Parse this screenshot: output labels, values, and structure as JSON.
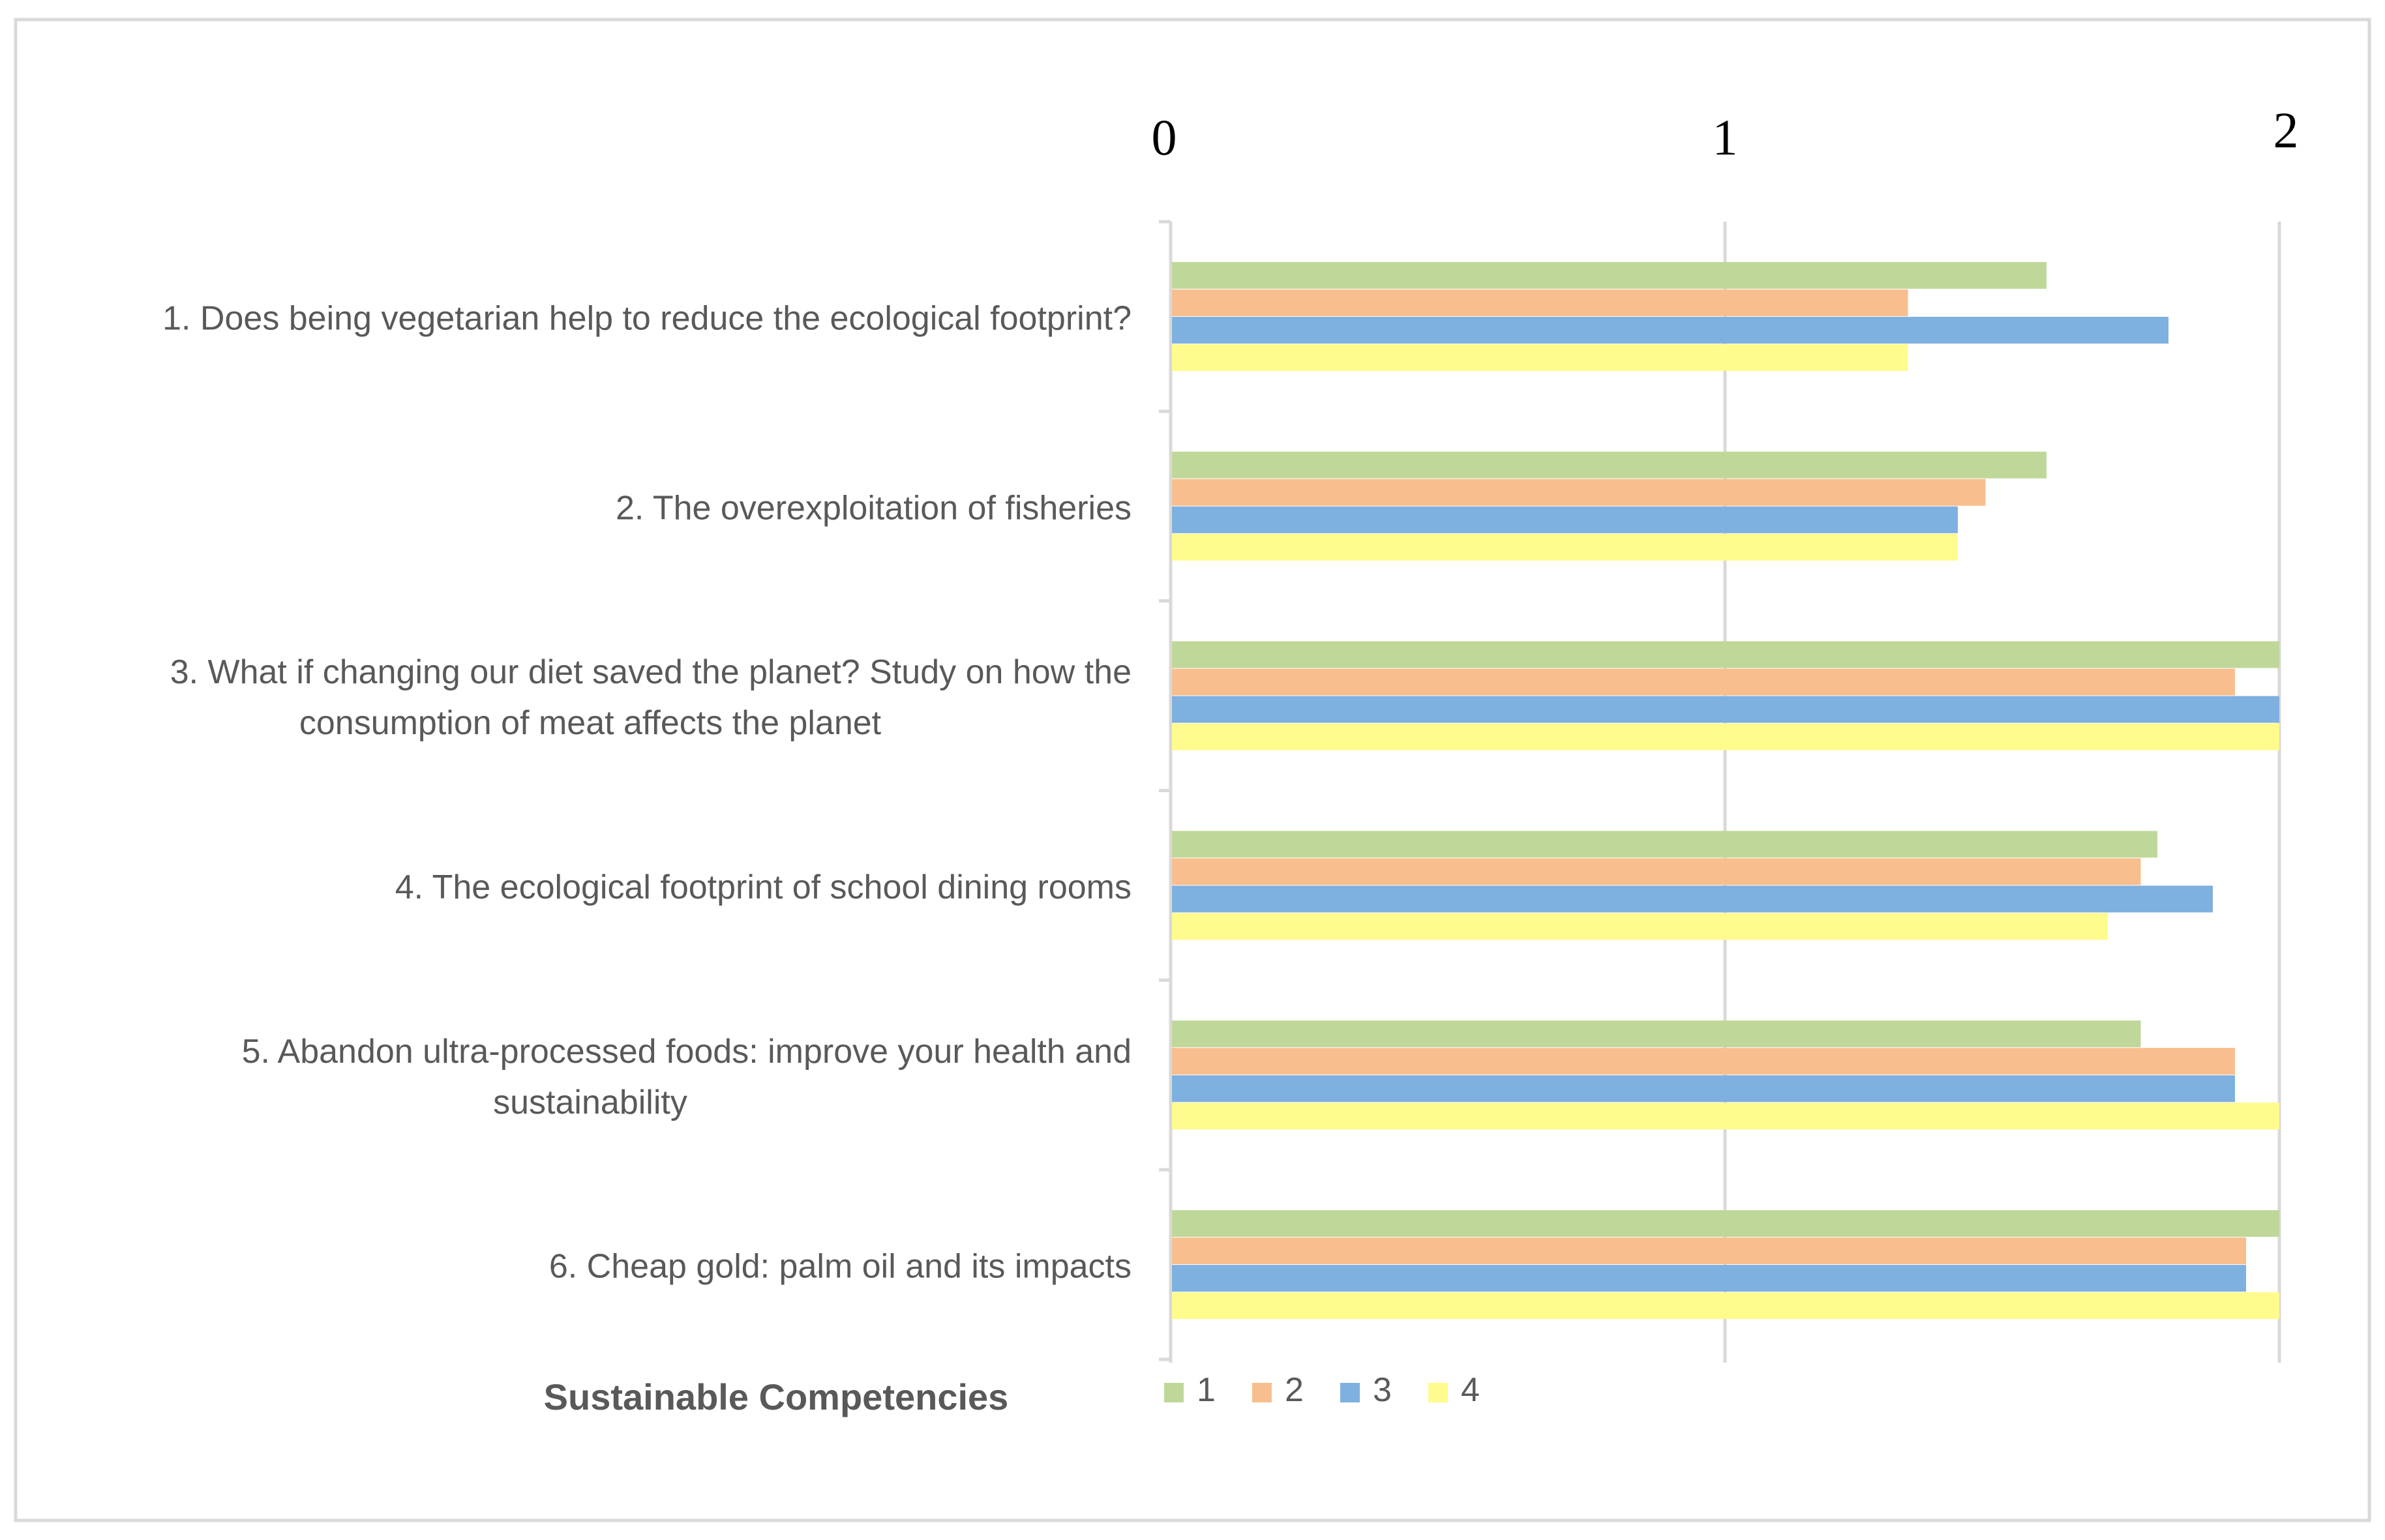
{
  "chart_data": {
    "type": "bar",
    "orientation": "horizontal",
    "title": "",
    "xlabel": "",
    "ylabel": "Sustainable Competencies",
    "xlim": [
      0,
      2
    ],
    "x_ticks": [
      "0",
      "1",
      "2"
    ],
    "grid": true,
    "legend_position": "bottom",
    "categories": [
      [
        "1. Does being vegetarian help to reduce the ecological footprint?"
      ],
      [
        "2. The overexploitation of fisheries"
      ],
      [
        "3. What if changing our diet saved the planet? Study on how the",
        "consumption of meat affects the planet"
      ],
      [
        "4. The ecological footprint of school dining rooms"
      ],
      [
        "5. Abandon ultra-processed foods: improve your health and",
        "sustainability"
      ],
      [
        "6. Cheap gold: palm oil and its impacts"
      ]
    ],
    "series": [
      {
        "name": "1",
        "color": "#BFD89A",
        "values": [
          1.58,
          1.58,
          2.0,
          1.78,
          1.75,
          2.0
        ]
      },
      {
        "name": "2",
        "color": "#F9BE8E",
        "values": [
          1.33,
          1.47,
          1.92,
          1.75,
          1.92,
          1.94
        ]
      },
      {
        "name": "3",
        "color": "#7EB0E0",
        "values": [
          1.8,
          1.42,
          2.0,
          1.88,
          1.92,
          1.94
        ]
      },
      {
        "name": "4",
        "color": "#FFFB8C",
        "values": [
          1.33,
          1.42,
          2.0,
          1.69,
          2.0,
          2.0
        ]
      }
    ]
  }
}
